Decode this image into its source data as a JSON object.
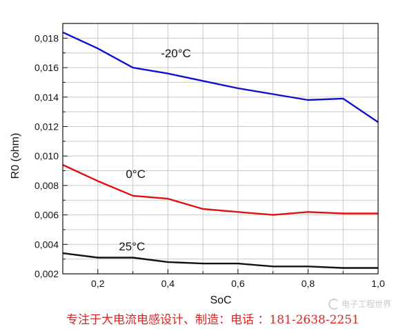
{
  "chart_data": {
    "type": "line",
    "title": "",
    "xlabel": "SoC",
    "ylabel": "R0 (ohm)",
    "xlim": [
      0.1,
      1.0
    ],
    "ylim": [
      0.002,
      0.019
    ],
    "grid": true,
    "x_ticks": [
      {
        "value": 0.2,
        "label": "0,2"
      },
      {
        "value": 0.4,
        "label": "0,4"
      },
      {
        "value": 0.6,
        "label": "0,6"
      },
      {
        "value": 0.8,
        "label": "0,8"
      },
      {
        "value": 1.0,
        "label": "1,0"
      }
    ],
    "y_ticks": [
      {
        "value": 0.002,
        "label": "0,002"
      },
      {
        "value": 0.004,
        "label": "0,004"
      },
      {
        "value": 0.006,
        "label": "0,006"
      },
      {
        "value": 0.008,
        "label": "0,008"
      },
      {
        "value": 0.01,
        "label": "0,010"
      },
      {
        "value": 0.012,
        "label": "0,012"
      },
      {
        "value": 0.014,
        "label": "0,014"
      },
      {
        "value": 0.016,
        "label": "0,016"
      },
      {
        "value": 0.018,
        "label": "0,018"
      }
    ],
    "x": [
      0.1,
      0.2,
      0.3,
      0.4,
      0.5,
      0.6,
      0.7,
      0.8,
      0.9,
      1.0
    ],
    "series": [
      {
        "name": "-20°C",
        "color": "#1010cc",
        "values": [
          0.0184,
          0.0173,
          0.016,
          0.0156,
          0.0151,
          0.0146,
          0.0142,
          0.0138,
          0.0139,
          0.0123
        ],
        "label_anchor": {
          "x": 0.38,
          "y": 0.0167
        }
      },
      {
        "name": "0°C",
        "color": "#dd1111",
        "values": [
          0.0094,
          0.0083,
          0.0073,
          0.0071,
          0.0064,
          0.0062,
          0.006,
          0.0062,
          0.0061,
          0.0061
        ],
        "label_anchor": {
          "x": 0.28,
          "y": 0.0085
        }
      },
      {
        "name": "25°C",
        "color": "#111111",
        "values": [
          0.0034,
          0.0031,
          0.0031,
          0.0028,
          0.0027,
          0.0027,
          0.0025,
          0.0025,
          0.0024,
          0.0024
        ],
        "label_anchor": {
          "x": 0.26,
          "y": 0.0036
        }
      }
    ]
  },
  "footer": {
    "text": "专注于大电流电感设计、制造：电话 ：181-2638-2251"
  },
  "watermark": {
    "text": "电子工程世界",
    "icon": "eeworld-logo-icon"
  }
}
